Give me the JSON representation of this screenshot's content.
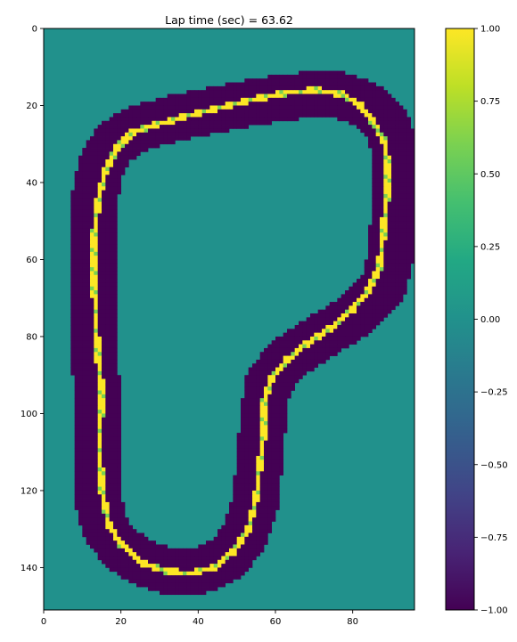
{
  "chart_data": {
    "type": "heatmap",
    "title": "Lap time (sec) = 63.62",
    "xlabel": "",
    "ylabel": "",
    "x_range": [
      0,
      96
    ],
    "y_range": [
      0,
      151
    ],
    "y_inverted": true,
    "x_ticks": [
      0,
      20,
      40,
      60,
      80
    ],
    "y_ticks": [
      0,
      20,
      40,
      60,
      80,
      100,
      120,
      140
    ],
    "x_tick_labels": [
      "0",
      "20",
      "40",
      "60",
      "80"
    ],
    "y_tick_labels": [
      "0",
      "20",
      "40",
      "60",
      "80",
      "100",
      "120",
      "140"
    ],
    "colorbar": {
      "colormap": "viridis",
      "range": [
        -1.0,
        1.0
      ],
      "ticks": [
        1.0,
        0.75,
        0.5,
        0.25,
        0.0,
        -0.25,
        -0.5,
        -0.75,
        -1.0
      ],
      "tick_labels": [
        "1.00",
        "0.75",
        "0.50",
        "0.25",
        "0.00",
        "−0.25",
        "−0.50",
        "−0.75",
        "−1.00"
      ]
    },
    "cell_values": {
      "background": 0.0,
      "track": -1.0,
      "racing_line": 1.0,
      "racing_line_variant": 0.6
    },
    "track_centerline": [
      [
        76,
        17
      ],
      [
        84,
        20
      ],
      [
        89,
        25
      ],
      [
        91,
        32
      ],
      [
        91,
        45
      ],
      [
        90,
        58
      ],
      [
        88,
        67
      ],
      [
        80,
        75
      ],
      [
        70,
        81
      ],
      [
        63,
        86
      ],
      [
        58,
        92
      ],
      [
        57,
        100
      ],
      [
        56,
        110
      ],
      [
        55,
        122
      ],
      [
        52,
        132
      ],
      [
        47,
        138
      ],
      [
        40,
        141
      ],
      [
        33,
        141
      ],
      [
        26,
        139
      ],
      [
        20,
        135
      ],
      [
        16,
        130
      ],
      [
        14,
        122
      ],
      [
        14,
        100
      ],
      [
        13,
        80
      ],
      [
        13,
        60
      ],
      [
        13,
        45
      ],
      [
        15,
        35
      ],
      [
        18,
        30
      ],
      [
        24,
        26
      ],
      [
        35,
        23
      ],
      [
        45,
        21
      ],
      [
        55,
        19
      ],
      [
        66,
        17.5
      ]
    ],
    "track_halfwidth": 6,
    "racing_line": [
      [
        70,
        16
      ],
      [
        77,
        17
      ],
      [
        82,
        20
      ],
      [
        85,
        24
      ],
      [
        88,
        29
      ],
      [
        89,
        34
      ],
      [
        89,
        42
      ],
      [
        88,
        52
      ],
      [
        87,
        62
      ],
      [
        84,
        68
      ],
      [
        80,
        73
      ],
      [
        74,
        78
      ],
      [
        68,
        82
      ],
      [
        63,
        86
      ],
      [
        59,
        91
      ],
      [
        57,
        97
      ],
      [
        57,
        105
      ],
      [
        56,
        113
      ],
      [
        55,
        122
      ],
      [
        53,
        130
      ],
      [
        49,
        136
      ],
      [
        44,
        140
      ],
      [
        38,
        141.5
      ],
      [
        32,
        141
      ],
      [
        26,
        139
      ],
      [
        20,
        134
      ],
      [
        17,
        129
      ],
      [
        15,
        120
      ],
      [
        14.5,
        108
      ],
      [
        15,
        93
      ],
      [
        14,
        85
      ],
      [
        13.5,
        75
      ],
      [
        13,
        65
      ],
      [
        13,
        55
      ],
      [
        14,
        45
      ],
      [
        16,
        37
      ],
      [
        19,
        31
      ],
      [
        23,
        27
      ],
      [
        29,
        25
      ],
      [
        40,
        22
      ],
      [
        52,
        19
      ],
      [
        61,
        17
      ]
    ]
  }
}
